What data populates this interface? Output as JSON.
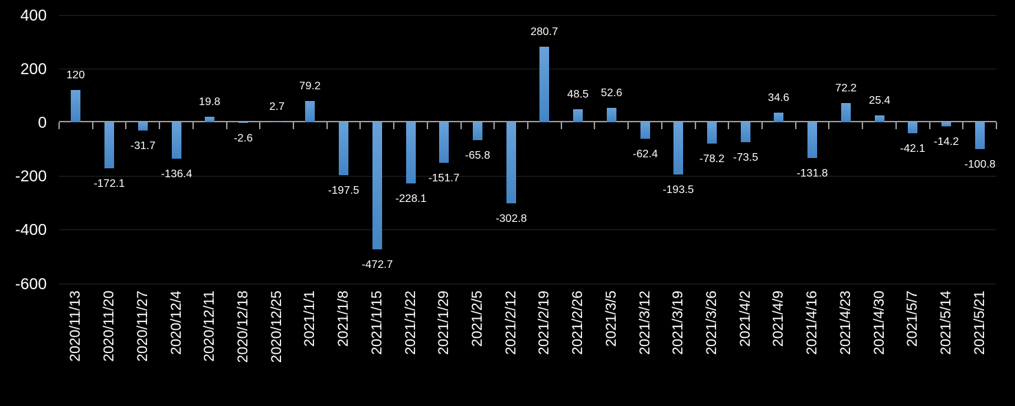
{
  "chart_data": {
    "type": "bar",
    "title": "",
    "categories": [
      "2020/11/13",
      "2020/11/20",
      "2020/11/27",
      "2020/12/4",
      "2020/12/11",
      "2020/12/18",
      "2020/12/25",
      "2021/1/1",
      "2021/1/8",
      "2021/1/15",
      "2021/1/22",
      "2021/1/29",
      "2021/2/5",
      "2021/2/12",
      "2021/2/19",
      "2021/2/26",
      "2021/3/5",
      "2021/3/12",
      "2021/3/19",
      "2021/3/26",
      "2021/4/2",
      "2021/4/9",
      "2021/4/16",
      "2021/4/23",
      "2021/4/30",
      "2021/5/7",
      "2021/5/14",
      "2021/5/21"
    ],
    "values": [
      120,
      -172.1,
      -31.7,
      -136.4,
      19.8,
      -2.6,
      2.7,
      79.2,
      -197.5,
      -472.7,
      -228.1,
      -151.7,
      -65.8,
      -302.8,
      280.7,
      48.5,
      52.6,
      -62.4,
      -193.5,
      -78.2,
      -73.5,
      34.6,
      -131.8,
      72.2,
      25.4,
      -42.1,
      -14.2,
      -100.8
    ],
    "data_labels": [
      "120",
      "-172.1",
      "-31.7",
      "-136.4",
      "19.8",
      "-2.6",
      "2.7",
      "79.2",
      "-197.5",
      "-472.7",
      "-228.1",
      "-151.7",
      "-65.8",
      "-302.8",
      "280.7",
      "48.5",
      "52.6",
      "-62.4",
      "-193.5",
      "-78.2",
      "-73.5",
      "34.6",
      "-131.8",
      "72.2",
      "25.4",
      "-42.1",
      "-14.2",
      "-100.8"
    ],
    "xlabel": "",
    "ylabel": "",
    "ylim": [
      -600,
      400
    ],
    "y_tick_labels": [
      "400",
      "200",
      "0",
      "-200",
      "-400",
      "-600"
    ],
    "y_tick_values": [
      400,
      200,
      0,
      -200,
      -400,
      -600
    ],
    "x_label_rotation_deg": 90,
    "grid": true,
    "legend_position": "none",
    "colors": {
      "background": "#000000",
      "bar_gradient_top": "#68a2db",
      "bar_gradient_bottom": "#4385c5",
      "axis": "#9b9b9b",
      "gridline": "#262626",
      "text": "#ffffff"
    }
  }
}
